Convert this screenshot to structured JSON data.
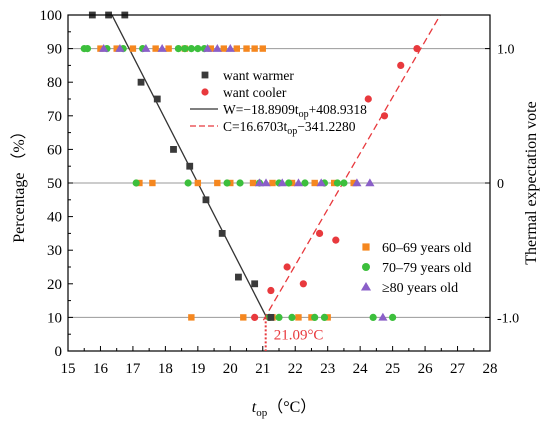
{
  "chart_data": {
    "type": "scatter",
    "xlabel_main": "t",
    "xlabel_sub": "op",
    "xlabel_unit": "（°C）",
    "ylabel_left": "Percentage （%）",
    "ylabel_right": "Thermal expectation vote",
    "xlim": [
      15,
      28
    ],
    "ylim": [
      0,
      100
    ],
    "xticks": [
      15,
      16,
      17,
      18,
      19,
      20,
      21,
      22,
      23,
      24,
      25,
      26,
      27,
      28
    ],
    "yticks": [
      0,
      10,
      20,
      30,
      40,
      50,
      60,
      70,
      80,
      90,
      100
    ],
    "right_ticks": [
      {
        "y": 90,
        "label": "1.0"
      },
      {
        "y": 50,
        "label": "0"
      },
      {
        "y": 10,
        "label": "-1.0"
      }
    ],
    "reference_lines": [
      90,
      50,
      10
    ],
    "colors": {
      "warmer": "#3a3a3a",
      "cooler": "#e8393d",
      "age_60_69": "#f5871f",
      "age_70_79": "#3cbf3c",
      "age_80_plus": "#8a5fc8",
      "grid": "#999999"
    },
    "series": [
      {
        "name": "want warmer",
        "marker": "square",
        "points": [
          [
            15.75,
            100
          ],
          [
            16.25,
            100
          ],
          [
            16.75,
            100
          ],
          [
            17.25,
            80
          ],
          [
            17.75,
            75
          ],
          [
            18.25,
            60
          ],
          [
            18.75,
            55
          ],
          [
            19.25,
            45
          ],
          [
            19.75,
            35
          ],
          [
            20.25,
            22
          ],
          [
            20.75,
            20
          ],
          [
            21.25,
            10
          ]
        ]
      },
      {
        "name": "want cooler",
        "marker": "circle",
        "points": [
          [
            20.75,
            10
          ],
          [
            21.25,
            18
          ],
          [
            21.75,
            25
          ],
          [
            22.25,
            20
          ],
          [
            22.75,
            35
          ],
          [
            23.25,
            33
          ],
          [
            24.25,
            75
          ],
          [
            24.75,
            70
          ],
          [
            25.25,
            85
          ],
          [
            25.75,
            90
          ]
        ]
      }
    ],
    "fits": [
      {
        "label_pre": "W=−18.8909t",
        "label_sub": "op",
        "label_post": "+408.9318",
        "slope": -18.8909,
        "intercept": 408.9318,
        "x_range": [
          16.35,
          21.12
        ],
        "style": "solid"
      },
      {
        "label_pre": "C=16.6703t",
        "label_sub": "op",
        "label_post": "−341.2280",
        "slope": 16.6703,
        "intercept": -341.228,
        "x_range": [
          21.02,
          26.47
        ],
        "style": "dashed"
      }
    ],
    "intersection": {
      "x": 21.09,
      "label": "21.09°C"
    },
    "votes": [
      {
        "name": "60–69 years old",
        "marker": "square",
        "points": [
          [
            16.0,
            90
          ],
          [
            16.5,
            90
          ],
          [
            17.0,
            90
          ],
          [
            17.7,
            90
          ],
          [
            18.1,
            90
          ],
          [
            18.6,
            90
          ],
          [
            19.4,
            90
          ],
          [
            19.8,
            90
          ],
          [
            20.2,
            90
          ],
          [
            20.5,
            90
          ],
          [
            20.75,
            90
          ],
          [
            21.0,
            90
          ],
          [
            17.2,
            50
          ],
          [
            17.6,
            50
          ],
          [
            19.0,
            50
          ],
          [
            19.6,
            50
          ],
          [
            20.0,
            50
          ],
          [
            20.7,
            50
          ],
          [
            21.3,
            50
          ],
          [
            21.9,
            50
          ],
          [
            22.6,
            50
          ],
          [
            23.2,
            50
          ],
          [
            23.8,
            50
          ],
          [
            18.8,
            10
          ],
          [
            20.4,
            10
          ],
          [
            21.3,
            10
          ],
          [
            22.1,
            10
          ],
          [
            22.5,
            10
          ],
          [
            23.0,
            10
          ]
        ]
      },
      {
        "name": "70–79 years old",
        "marker": "circle",
        "points": [
          [
            15.5,
            90
          ],
          [
            15.6,
            90
          ],
          [
            16.2,
            90
          ],
          [
            16.7,
            90
          ],
          [
            17.3,
            90
          ],
          [
            18.4,
            90
          ],
          [
            18.6,
            90
          ],
          [
            18.8,
            90
          ],
          [
            19.0,
            90
          ],
          [
            19.2,
            90
          ],
          [
            17.1,
            50
          ],
          [
            18.7,
            50
          ],
          [
            19.9,
            50
          ],
          [
            20.3,
            50
          ],
          [
            20.9,
            50
          ],
          [
            21.5,
            50
          ],
          [
            21.8,
            50
          ],
          [
            22.3,
            50
          ],
          [
            22.9,
            50
          ],
          [
            23.3,
            50
          ],
          [
            23.5,
            50
          ],
          [
            21.2,
            10
          ],
          [
            21.5,
            10
          ],
          [
            21.9,
            10
          ],
          [
            22.6,
            10
          ],
          [
            22.9,
            10
          ],
          [
            24.4,
            10
          ],
          [
            25.0,
            10
          ]
        ]
      },
      {
        "name": "≥80 years old",
        "marker": "triangle",
        "points": [
          [
            16.1,
            90
          ],
          [
            16.6,
            90
          ],
          [
            17.4,
            90
          ],
          [
            17.9,
            90
          ],
          [
            19.3,
            90
          ],
          [
            19.6,
            90
          ],
          [
            20.0,
            90
          ],
          [
            20.9,
            50
          ],
          [
            21.1,
            50
          ],
          [
            21.6,
            50
          ],
          [
            22.1,
            50
          ],
          [
            22.8,
            50
          ],
          [
            23.9,
            50
          ],
          [
            24.3,
            50
          ],
          [
            24.7,
            10
          ]
        ]
      }
    ],
    "legend_top": {
      "position": "upper-center"
    },
    "legend_age": {
      "position": "lower-right"
    }
  }
}
